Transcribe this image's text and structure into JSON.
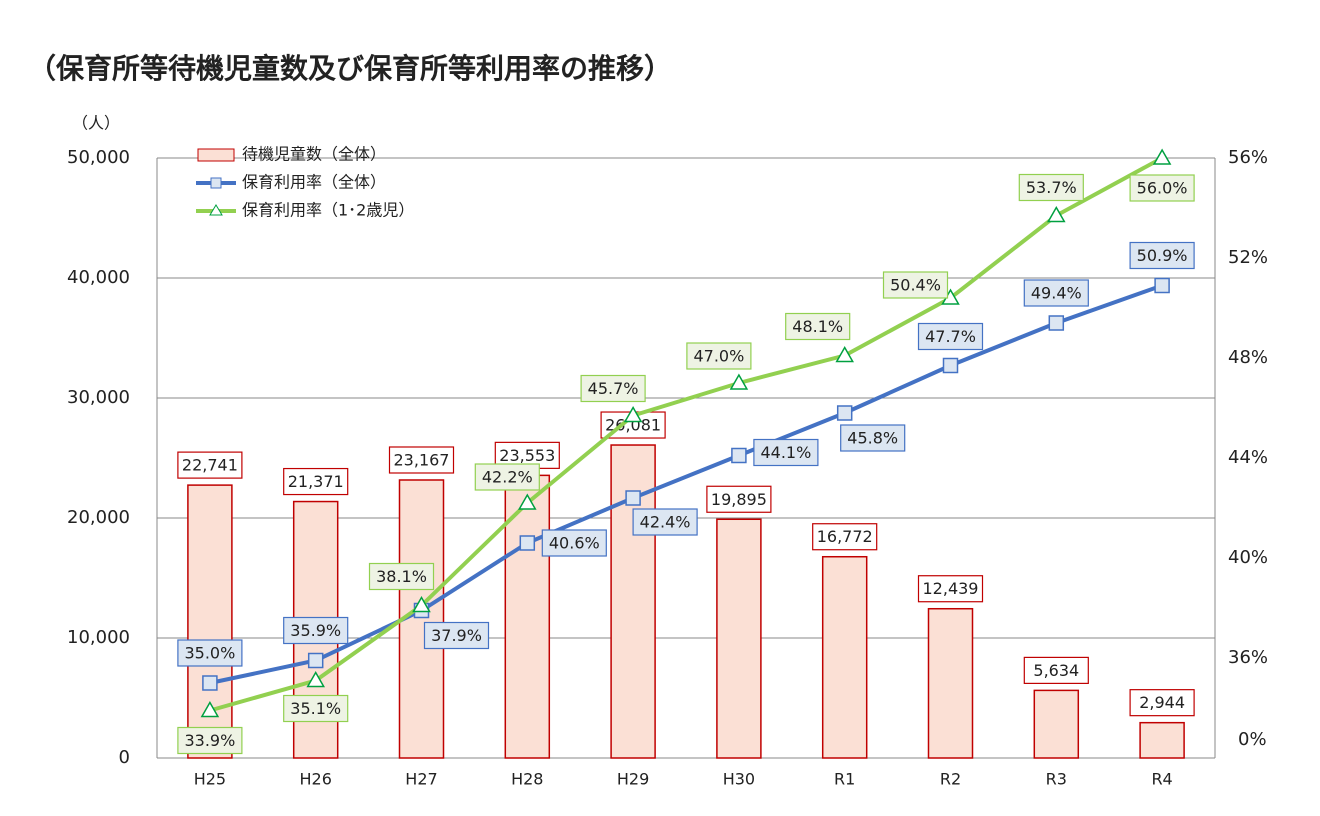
{
  "chart_data": {
    "type": "bar-line",
    "title": "（保育所等待機児童数及び保育所等利用率の推移）",
    "y_unit": "（人）",
    "categories": [
      "H25",
      "H26",
      "H27",
      "H28",
      "H29",
      "H30",
      "R1",
      "R2",
      "R3",
      "R4"
    ],
    "series": [
      {
        "name": "待機児童数（全体）",
        "type": "bar",
        "color": "#c00000",
        "fill": "#fbe0d5",
        "values": [
          22741,
          21371,
          23167,
          23553,
          26081,
          19895,
          16772,
          12439,
          5634,
          2944
        ],
        "value_labels": [
          "22,741",
          "21,371",
          "23,167",
          "23,553",
          "26,081",
          "19,895",
          "16,772",
          "12,439",
          "5,634",
          "2,944"
        ]
      },
      {
        "name": "保育利用率（全体）",
        "type": "line",
        "axis": "y2",
        "color": "#4472c4",
        "marker": "square",
        "values": [
          35.0,
          35.9,
          37.9,
          40.6,
          42.4,
          44.1,
          45.8,
          47.7,
          49.4,
          50.9
        ],
        "value_labels": [
          "35.0%",
          "35.9%",
          "37.9%",
          "40.6%",
          "42.4%",
          "44.1%",
          "45.8%",
          "47.7%",
          "49.4%",
          "50.9%"
        ]
      },
      {
        "name": "保育利用率（1･2歳児）",
        "type": "line",
        "axis": "y2",
        "color": "#92d050",
        "marker": "triangle",
        "values": [
          33.9,
          35.1,
          38.1,
          42.2,
          45.7,
          47.0,
          48.1,
          50.4,
          53.7,
          56.0
        ],
        "value_labels": [
          "33.9%",
          "35.1%",
          "38.1%",
          "42.2%",
          "45.7%",
          "47.0%",
          "48.1%",
          "50.4%",
          "53.7%",
          "56.0%"
        ]
      }
    ],
    "ylim": [
      0,
      50000
    ],
    "yticks": [
      0,
      {
        "value": 10000,
        "label": "10,000"
      },
      {
        "value": 20000,
        "label": "20,000"
      },
      {
        "value": 30000,
        "label": "30,000"
      },
      {
        "value": 40000,
        "label": "40,000"
      },
      {
        "value": 50000,
        "label": "50,000"
      }
    ],
    "y2lim": [
      32,
      56
    ],
    "y2ticks": [
      {
        "value": 36,
        "label": "36%"
      },
      {
        "value": 40,
        "label": "40%"
      },
      {
        "value": 44,
        "label": "44%"
      },
      {
        "value": 48,
        "label": "48%"
      },
      {
        "value": 52,
        "label": "52%"
      },
      {
        "value": 56,
        "label": "56%"
      }
    ],
    "y2_break_label": "0%",
    "grid": true
  }
}
